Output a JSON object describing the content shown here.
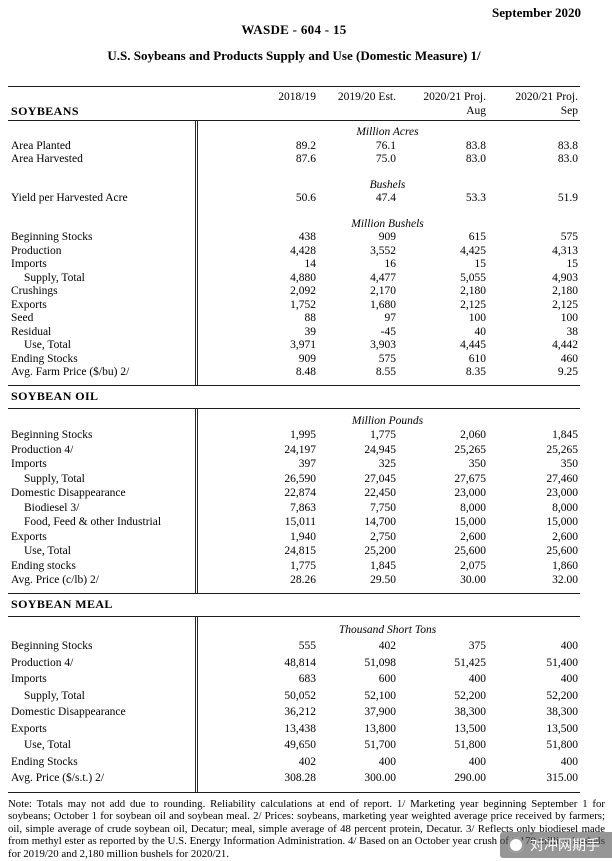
{
  "header": {
    "date": "September 2020",
    "report_id": "WASDE - 604 - 15",
    "title": "U.S. Soybeans and Products Supply and Use (Domestic Measure)  1/"
  },
  "table": {
    "columns": [
      "2018/19",
      "2019/20 Est.",
      "2020/21 Proj.",
      "2020/21 Proj."
    ],
    "subcolumns": [
      "",
      "",
      "Aug",
      "Sep"
    ],
    "sections": [
      {
        "name": "SOYBEANS",
        "rows": [
          {
            "t": "unit",
            "label": "Million Acres"
          },
          {
            "t": "row",
            "label": "Area Planted",
            "v": [
              "89.2",
              "76.1",
              "83.8",
              "83.8"
            ]
          },
          {
            "t": "row",
            "label": "Area Harvested",
            "v": [
              "87.6",
              "75.0",
              "83.0",
              "83.0"
            ]
          },
          {
            "t": "gap"
          },
          {
            "t": "unit",
            "label": "Bushels"
          },
          {
            "t": "row",
            "label": "Yield per Harvested Acre",
            "v": [
              "50.6",
              "47.4",
              "53.3",
              "51.9"
            ]
          },
          {
            "t": "gap"
          },
          {
            "t": "unit",
            "label": "Million Bushels"
          },
          {
            "t": "row",
            "label": "Beginning Stocks",
            "v": [
              "438",
              "909",
              "615",
              "575"
            ]
          },
          {
            "t": "row",
            "label": "Production",
            "v": [
              "4,428",
              "3,552",
              "4,425",
              "4,313"
            ]
          },
          {
            "t": "row",
            "label": "Imports",
            "v": [
              "14",
              "16",
              "15",
              "15"
            ]
          },
          {
            "t": "row",
            "label": "Supply, Total",
            "indent": true,
            "v": [
              "4,880",
              "4,477",
              "5,055",
              "4,903"
            ]
          },
          {
            "t": "row",
            "label": "Crushings",
            "v": [
              "2,092",
              "2,170",
              "2,180",
              "2,180"
            ]
          },
          {
            "t": "row",
            "label": "Exports",
            "v": [
              "1,752",
              "1,680",
              "2,125",
              "2,125"
            ]
          },
          {
            "t": "row",
            "label": "Seed",
            "v": [
              "88",
              "97",
              "100",
              "100"
            ]
          },
          {
            "t": "row",
            "label": "Residual",
            "v": [
              "39",
              "-45",
              "40",
              "38"
            ]
          },
          {
            "t": "row",
            "label": "Use, Total",
            "indent": true,
            "v": [
              "3,971",
              "3,903",
              "4,445",
              "4,442"
            ]
          },
          {
            "t": "row",
            "label": "Ending Stocks",
            "v": [
              "909",
              "575",
              "610",
              "460"
            ]
          },
          {
            "t": "row",
            "label": "Avg. Farm Price ($/bu)  2/",
            "v": [
              "8.48",
              "8.55",
              "8.35",
              "9.25"
            ]
          }
        ]
      },
      {
        "name": "SOYBEAN OIL",
        "rows": [
          {
            "t": "unit",
            "label": "Million Pounds"
          },
          {
            "t": "row",
            "label": "Beginning Stocks",
            "v": [
              "1,995",
              "1,775",
              "2,060",
              "1,845"
            ]
          },
          {
            "t": "row",
            "label": "Production 4/",
            "v": [
              "24,197",
              "24,945",
              "25,265",
              "25,265"
            ]
          },
          {
            "t": "row",
            "label": "Imports",
            "v": [
              "397",
              "325",
              "350",
              "350"
            ]
          },
          {
            "t": "row",
            "label": "Supply, Total",
            "indent": true,
            "v": [
              "26,590",
              "27,045",
              "27,675",
              "27,460"
            ]
          },
          {
            "t": "row",
            "label": "Domestic Disappearance",
            "v": [
              "22,874",
              "22,450",
              "23,000",
              "23,000"
            ]
          },
          {
            "t": "row",
            "label": "Biodiesel 3/",
            "indent": true,
            "v": [
              "7,863",
              "7,750",
              "8,000",
              "8,000"
            ]
          },
          {
            "t": "row",
            "label": "Food, Feed & other Industrial",
            "indent": true,
            "v": [
              "15,011",
              "14,700",
              "15,000",
              "15,000"
            ]
          },
          {
            "t": "row",
            "label": "Exports",
            "v": [
              "1,940",
              "2,750",
              "2,600",
              "2,600"
            ]
          },
          {
            "t": "row",
            "label": "Use, Total",
            "indent": true,
            "v": [
              "24,815",
              "25,200",
              "25,600",
              "25,600"
            ]
          },
          {
            "t": "row",
            "label": "Ending stocks",
            "v": [
              "1,775",
              "1,845",
              "2,075",
              "1,860"
            ]
          },
          {
            "t": "row",
            "label": "Avg. Price (c/lb)  2/",
            "v": [
              "28.26",
              "29.50",
              "30.00",
              "32.00"
            ]
          }
        ]
      },
      {
        "name": "SOYBEAN MEAL",
        "rows": [
          {
            "t": "unit",
            "label": "Thousand Short Tons"
          },
          {
            "t": "row",
            "label": "Beginning Stocks",
            "v": [
              "555",
              "402",
              "375",
              "400"
            ]
          },
          {
            "t": "row",
            "label": "Production 4/",
            "v": [
              "48,814",
              "51,098",
              "51,425",
              "51,400"
            ]
          },
          {
            "t": "row",
            "label": "Imports",
            "v": [
              "683",
              "600",
              "400",
              "400"
            ]
          },
          {
            "t": "row",
            "label": "Supply, Total",
            "indent": true,
            "v": [
              "50,052",
              "52,100",
              "52,200",
              "52,200"
            ]
          },
          {
            "t": "row",
            "label": "Domestic Disappearance",
            "v": [
              "36,212",
              "37,900",
              "38,300",
              "38,300"
            ]
          },
          {
            "t": "row",
            "label": "Exports",
            "v": [
              "13,438",
              "13,800",
              "13,500",
              "13,500"
            ]
          },
          {
            "t": "row",
            "label": "Use, Total",
            "indent": true,
            "v": [
              "49,650",
              "51,700",
              "51,800",
              "51,800"
            ]
          },
          {
            "t": "row",
            "label": "Ending Stocks",
            "v": [
              "402",
              "400",
              "400",
              "400"
            ]
          },
          {
            "t": "row",
            "label": "Avg. Price ($/s.t.)  2/",
            "v": [
              "308.28",
              "300.00",
              "290.00",
              "315.00"
            ]
          }
        ]
      }
    ]
  },
  "note": "Note:  Totals may not add due to rounding.  Reliability calculations at end of report.  1/ Marketing year beginning September 1 for soybeans; October 1 for soybean oil and soybean meal.  2/ Prices: soybeans, marketing year weighted average price received by farmers; oil, simple average of crude soybean oil, Decatur; meal, simple average of 48 percent protein, Decatur.  3/ Reflects only biodiesel made from methyl ester as reported by the U.S. Energy Information Administration.  4/ Based on an October year crush of 2,170 million bushels for 2019/20 and 2,180 million bushels for 2020/21.",
  "watermark": {
    "text": "对冲网期手"
  }
}
